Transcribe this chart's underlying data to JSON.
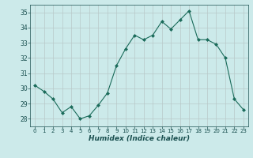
{
  "x": [
    0,
    1,
    2,
    3,
    4,
    5,
    6,
    7,
    8,
    9,
    10,
    11,
    12,
    13,
    14,
    15,
    16,
    17,
    18,
    19,
    20,
    21,
    22,
    23
  ],
  "y": [
    30.2,
    29.8,
    29.3,
    28.4,
    28.8,
    28.0,
    28.2,
    28.9,
    29.7,
    31.5,
    32.6,
    33.5,
    33.2,
    33.5,
    34.4,
    33.9,
    34.5,
    35.1,
    33.2,
    33.2,
    32.9,
    32.0,
    29.3,
    28.6
  ],
  "line_color": "#1a6b5a",
  "marker": "D",
  "marker_size": 2.0,
  "bg_color": "#cceaea",
  "grid_color": "#b8c8c8",
  "grid_color_minor": "#d4c8c8",
  "xlabel": "Humidex (Indice chaleur)",
  "xlim": [
    -0.5,
    23.5
  ],
  "ylim": [
    27.5,
    35.5
  ],
  "yticks": [
    28,
    29,
    30,
    31,
    32,
    33,
    34,
    35
  ],
  "xticks": [
    0,
    1,
    2,
    3,
    4,
    5,
    6,
    7,
    8,
    9,
    10,
    11,
    12,
    13,
    14,
    15,
    16,
    17,
    18,
    19,
    20,
    21,
    22,
    23
  ],
  "tick_color": "#1a5050",
  "label_color": "#1a5050"
}
